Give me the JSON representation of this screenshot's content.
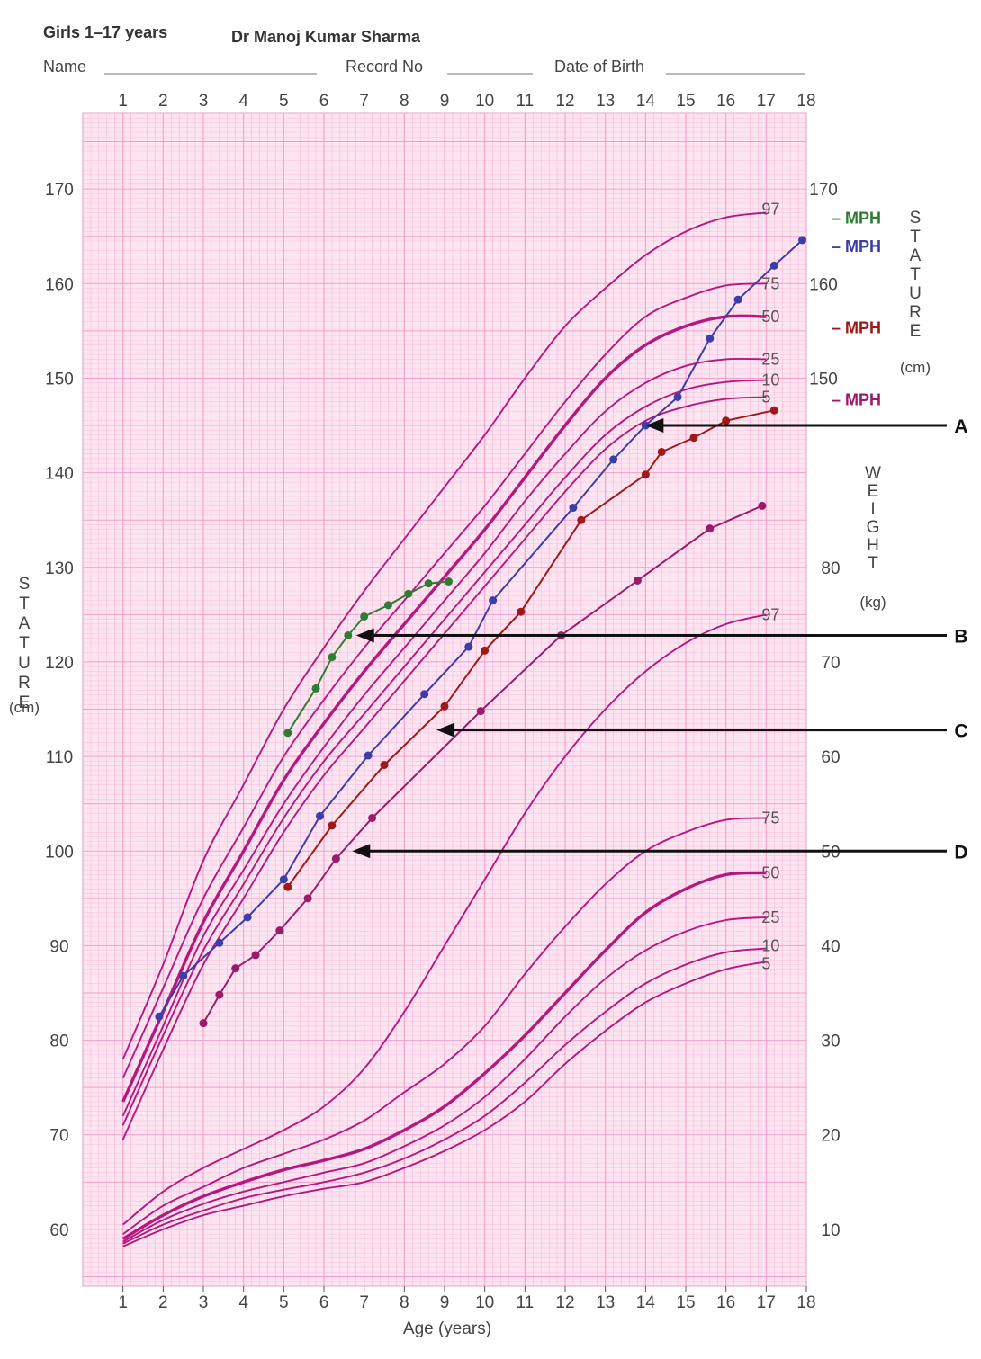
{
  "header": {
    "title": "Girls 1–17 years",
    "author": "Dr  Manoj Kumar Sharma",
    "name_label": "Name",
    "record_label": "Record No",
    "dob_label": "Date of Birth"
  },
  "chart_data": {
    "type": "line",
    "title": "Girls 1–17 years",
    "xlabel": "Age (years)",
    "x_ticks": [
      1,
      2,
      3,
      4,
      5,
      6,
      7,
      8,
      9,
      10,
      11,
      12,
      13,
      14,
      15,
      16,
      17,
      18
    ],
    "xlim": [
      0,
      18
    ],
    "stature_axis": {
      "label_vertical": "STATURE",
      "unit": "(cm)",
      "ylim": [
        54,
        178
      ],
      "ticks": [
        60,
        70,
        80,
        90,
        100,
        110,
        120,
        130,
        140,
        150,
        160,
        170
      ],
      "right_ticks": [
        150,
        160,
        170
      ]
    },
    "weight_axis": {
      "label_vertical": "WEIGHT",
      "unit": "(kg)",
      "ticks": [
        10,
        20,
        30,
        40,
        50,
        60,
        70,
        80
      ]
    },
    "colors": {
      "background": "#fde4f1",
      "grid": "#f39ccb",
      "centile": "#b5177f",
      "green": "#2e7d32",
      "blue": "#3b3ea8",
      "red": "#a01818",
      "purple": "#9c1a6b",
      "arrow": "#111111"
    },
    "stature_centiles": [
      {
        "name": "97",
        "points": [
          [
            1,
            78
          ],
          [
            2,
            88
          ],
          [
            3,
            99
          ],
          [
            4,
            107
          ],
          [
            5,
            115
          ],
          [
            6,
            121.5
          ],
          [
            7,
            127.5
          ],
          [
            8,
            133
          ],
          [
            9,
            138.5
          ],
          [
            10,
            144
          ],
          [
            11,
            150
          ],
          [
            12,
            155.5
          ],
          [
            13,
            159.5
          ],
          [
            14,
            163
          ],
          [
            15,
            165.5
          ],
          [
            16,
            167
          ],
          [
            17,
            167.5
          ]
        ]
      },
      {
        "name": "75",
        "points": [
          [
            1,
            76
          ],
          [
            2,
            85.5
          ],
          [
            3,
            95
          ],
          [
            4,
            102.5
          ],
          [
            5,
            110
          ],
          [
            6,
            116
          ],
          [
            7,
            121.5
          ],
          [
            8,
            126.5
          ],
          [
            9,
            131.5
          ],
          [
            10,
            136.5
          ],
          [
            11,
            142
          ],
          [
            12,
            147.5
          ],
          [
            13,
            152.5
          ],
          [
            14,
            156.5
          ],
          [
            15,
            158.5
          ],
          [
            16,
            159.8
          ],
          [
            17,
            160
          ]
        ]
      },
      {
        "name": "50",
        "points": [
          [
            1,
            73.5
          ],
          [
            2,
            83
          ],
          [
            3,
            92.5
          ],
          [
            4,
            100
          ],
          [
            5,
            107.5
          ],
          [
            6,
            113.5
          ],
          [
            7,
            119
          ],
          [
            8,
            124
          ],
          [
            9,
            129
          ],
          [
            10,
            134
          ],
          [
            11,
            139.5
          ],
          [
            12,
            145
          ],
          [
            13,
            150
          ],
          [
            14,
            153.5
          ],
          [
            15,
            155.5
          ],
          [
            16,
            156.5
          ],
          [
            17,
            156.5
          ]
        ]
      },
      {
        "name": "25",
        "points": [
          [
            1,
            72
          ],
          [
            2,
            81.5
          ],
          [
            3,
            91
          ],
          [
            4,
            98
          ],
          [
            5,
            105
          ],
          [
            6,
            111
          ],
          [
            7,
            116.5
          ],
          [
            8,
            121.5
          ],
          [
            9,
            126.5
          ],
          [
            10,
            131.5
          ],
          [
            11,
            137
          ],
          [
            12,
            142
          ],
          [
            13,
            146.5
          ],
          [
            14,
            149.5
          ],
          [
            15,
            151.3
          ],
          [
            16,
            152
          ],
          [
            17,
            152
          ]
        ]
      },
      {
        "name": "10",
        "points": [
          [
            1,
            71
          ],
          [
            2,
            80.5
          ],
          [
            3,
            89.5
          ],
          [
            4,
            96.5
          ],
          [
            5,
            103.5
          ],
          [
            6,
            109.5
          ],
          [
            7,
            114.5
          ],
          [
            8,
            119.5
          ],
          [
            9,
            124.5
          ],
          [
            10,
            129.5
          ],
          [
            11,
            134.5
          ],
          [
            12,
            139.5
          ],
          [
            13,
            144
          ],
          [
            14,
            147
          ],
          [
            15,
            148.8
          ],
          [
            16,
            149.6
          ],
          [
            17,
            149.8
          ]
        ]
      },
      {
        "name": "5",
        "points": [
          [
            1,
            69.5
          ],
          [
            2,
            79
          ],
          [
            3,
            88
          ],
          [
            4,
            95
          ],
          [
            5,
            102
          ],
          [
            6,
            108
          ],
          [
            7,
            113
          ],
          [
            8,
            118
          ],
          [
            9,
            123
          ],
          [
            10,
            128
          ],
          [
            11,
            133
          ],
          [
            12,
            138
          ],
          [
            13,
            142.5
          ],
          [
            14,
            145.5
          ],
          [
            15,
            147
          ],
          [
            16,
            147.8
          ],
          [
            17,
            148
          ]
        ]
      }
    ],
    "weight_centiles": [
      {
        "name": "97",
        "points": [
          [
            1,
            60.5
          ],
          [
            2,
            64
          ],
          [
            3,
            66.5
          ],
          [
            4,
            68.5
          ],
          [
            5,
            70.5
          ],
          [
            6,
            73
          ],
          [
            7,
            77
          ],
          [
            8,
            83
          ],
          [
            9,
            90
          ],
          [
            10,
            97
          ],
          [
            11,
            104
          ],
          [
            12,
            110
          ],
          [
            13,
            115
          ],
          [
            14,
            119
          ],
          [
            15,
            122
          ],
          [
            16,
            124
          ],
          [
            17,
            125
          ]
        ]
      },
      {
        "name": "75",
        "points": [
          [
            1,
            59.5
          ],
          [
            2,
            62.5
          ],
          [
            3,
            64.5
          ],
          [
            4,
            66.5
          ],
          [
            5,
            68
          ],
          [
            6,
            69.5
          ],
          [
            7,
            71.5
          ],
          [
            8,
            74.5
          ],
          [
            9,
            77.5
          ],
          [
            10,
            81.5
          ],
          [
            11,
            87
          ],
          [
            12,
            92
          ],
          [
            13,
            96.5
          ],
          [
            14,
            100
          ],
          [
            15,
            102
          ],
          [
            16,
            103.3
          ],
          [
            17,
            103.5
          ]
        ]
      },
      {
        "name": "50",
        "points": [
          [
            1,
            59
          ],
          [
            2,
            61.5
          ],
          [
            3,
            63.5
          ],
          [
            4,
            65
          ],
          [
            5,
            66.3
          ],
          [
            6,
            67.3
          ],
          [
            7,
            68.5
          ],
          [
            8,
            70.5
          ],
          [
            9,
            73
          ],
          [
            10,
            76.5
          ],
          [
            11,
            80.5
          ],
          [
            12,
            85
          ],
          [
            13,
            89.5
          ],
          [
            14,
            93.5
          ],
          [
            15,
            96
          ],
          [
            16,
            97.5
          ],
          [
            17,
            97.7
          ]
        ]
      },
      {
        "name": "25",
        "points": [
          [
            1,
            58.7
          ],
          [
            2,
            61
          ],
          [
            3,
            62.7
          ],
          [
            4,
            64
          ],
          [
            5,
            65
          ],
          [
            6,
            66
          ],
          [
            7,
            67
          ],
          [
            8,
            68.8
          ],
          [
            9,
            71
          ],
          [
            10,
            74
          ],
          [
            11,
            78
          ],
          [
            12,
            82.5
          ],
          [
            13,
            86.5
          ],
          [
            14,
            89.5
          ],
          [
            15,
            91.5
          ],
          [
            16,
            92.7
          ],
          [
            17,
            93
          ]
        ]
      },
      {
        "name": "10",
        "points": [
          [
            1,
            58.5
          ],
          [
            2,
            60.5
          ],
          [
            3,
            62
          ],
          [
            4,
            63.3
          ],
          [
            5,
            64.2
          ],
          [
            6,
            65
          ],
          [
            7,
            66
          ],
          [
            8,
            67.5
          ],
          [
            9,
            69.5
          ],
          [
            10,
            72
          ],
          [
            11,
            75.5
          ],
          [
            12,
            79.5
          ],
          [
            13,
            83
          ],
          [
            14,
            86
          ],
          [
            15,
            88
          ],
          [
            16,
            89.3
          ],
          [
            17,
            89.7
          ]
        ]
      },
      {
        "name": "5",
        "points": [
          [
            1,
            58.2
          ],
          [
            2,
            60
          ],
          [
            3,
            61.5
          ],
          [
            4,
            62.5
          ],
          [
            5,
            63.5
          ],
          [
            6,
            64.3
          ],
          [
            7,
            65
          ],
          [
            8,
            66.5
          ],
          [
            9,
            68.3
          ],
          [
            10,
            70.5
          ],
          [
            11,
            73.5
          ],
          [
            12,
            77.5
          ],
          [
            13,
            81
          ],
          [
            14,
            84
          ],
          [
            15,
            86
          ],
          [
            16,
            87.5
          ],
          [
            17,
            88.3
          ]
        ]
      }
    ],
    "series": [
      {
        "key": "green",
        "points": [
          [
            5.1,
            112.5
          ],
          [
            5.8,
            117.2
          ],
          [
            6.2,
            120.5
          ],
          [
            6.6,
            122.8
          ],
          [
            7.0,
            124.8
          ],
          [
            7.6,
            126
          ],
          [
            8.1,
            127.2
          ],
          [
            8.6,
            128.3
          ],
          [
            9.1,
            128.5
          ]
        ]
      },
      {
        "name": "A",
        "key": "blue",
        "points": [
          [
            1.9,
            82.5
          ],
          [
            2.5,
            86.8
          ],
          [
            3.4,
            90.3
          ],
          [
            4.1,
            93
          ],
          [
            5.0,
            97
          ],
          [
            5.9,
            103.7
          ],
          [
            7.1,
            110.1
          ],
          [
            8.5,
            116.6
          ],
          [
            9.6,
            121.6
          ],
          [
            10.2,
            126.5
          ],
          [
            12.2,
            136.3
          ],
          [
            13.2,
            141.4
          ],
          [
            14.0,
            145
          ],
          [
            14.8,
            148
          ],
          [
            15.6,
            154.2
          ],
          [
            16.3,
            158.3
          ],
          [
            17.2,
            161.9
          ],
          [
            17.9,
            164.6
          ]
        ]
      },
      {
        "name": "B",
        "key": "red",
        "points": [
          [
            5.1,
            96.2
          ],
          [
            6.2,
            102.7
          ],
          [
            7.5,
            109.1
          ],
          [
            9.0,
            115.3
          ],
          [
            10.0,
            121.2
          ],
          [
            10.9,
            125.3
          ],
          [
            12.4,
            135
          ],
          [
            14.0,
            139.8
          ],
          [
            14.4,
            142.2
          ],
          [
            15.2,
            143.7
          ],
          [
            16.0,
            145.5
          ],
          [
            17.2,
            146.6
          ]
        ]
      },
      {
        "name": "D",
        "key": "purple",
        "points": [
          [
            3.0,
            81.8
          ],
          [
            3.4,
            84.8
          ],
          [
            3.8,
            87.6
          ],
          [
            4.3,
            89
          ],
          [
            4.9,
            91.6
          ],
          [
            5.6,
            95
          ],
          [
            6.3,
            99.2
          ],
          [
            7.2,
            103.5
          ],
          [
            9.9,
            114.8
          ],
          [
            11.9,
            122.8
          ],
          [
            13.8,
            128.6
          ],
          [
            15.6,
            134.1
          ],
          [
            16.9,
            136.5
          ]
        ]
      }
    ],
    "mph_markers": [
      {
        "label": "– MPH",
        "key": "green",
        "y": 167
      },
      {
        "label": "– MPH",
        "key": "blue",
        "y": 164
      },
      {
        "label": "– MPH",
        "key": "red",
        "y": 155.4
      },
      {
        "label": "– MPH",
        "key": "purple",
        "y": 147.8
      }
    ],
    "annotations": [
      {
        "label": "A",
        "target": [
          14.0,
          145.0
        ]
      },
      {
        "label": "B",
        "target": [
          6.8,
          122.8
        ]
      },
      {
        "label": "C",
        "target": [
          8.8,
          112.8
        ]
      },
      {
        "label": "D",
        "target": [
          6.7,
          100.0
        ]
      }
    ]
  }
}
